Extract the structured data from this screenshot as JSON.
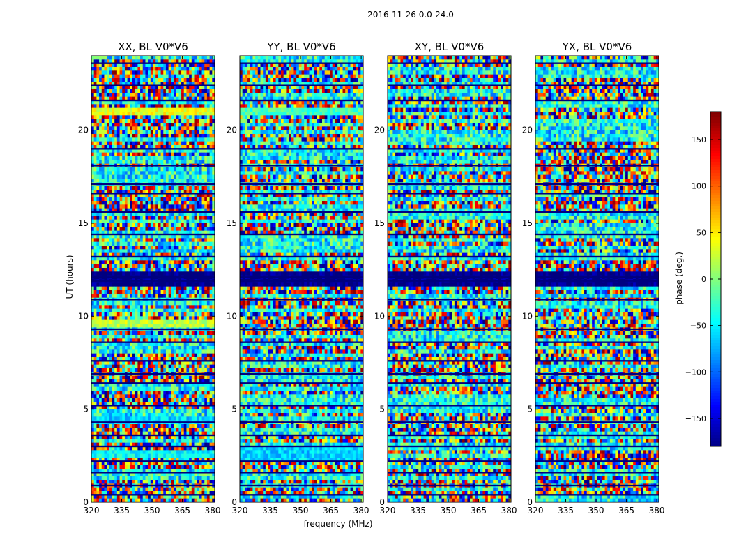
{
  "figure_title": "2016-11-26 0.0-24.0",
  "xlabel": "frequency (MHz)",
  "ylabel": "UT (hours)",
  "colorbar": {
    "label": "phase (deg.)",
    "range": [
      -180,
      180
    ],
    "ticks": [
      150,
      100,
      50,
      0,
      -50,
      -100,
      -150
    ],
    "tick_labels": [
      "150",
      "100",
      "50",
      "0",
      "−50",
      "−100",
      "−150"
    ],
    "colormap": "jet"
  },
  "chart_data": {
    "type": "heatmap",
    "title": "2016-11-26 0.0-24.0",
    "xlabel": "frequency (MHz)",
    "ylabel": "UT (hours)",
    "xlim": [
      320,
      381
    ],
    "ylim": [
      0,
      24
    ],
    "xticks": [
      320,
      335,
      350,
      365,
      380
    ],
    "yticks": [
      0,
      5,
      10,
      15,
      20
    ],
    "zlabel": "phase (deg.)",
    "zlim": [
      -180,
      180
    ],
    "panels": [
      {
        "title": "XX, BL V0*V6",
        "pol": "XX",
        "baseline": "V0*V6"
      },
      {
        "title": "YY, BL V0*V6",
        "pol": "YY",
        "baseline": "V0*V6"
      },
      {
        "title": "XY, BL V0*V6",
        "pol": "XY",
        "baseline": "V0*V6"
      },
      {
        "title": "YX, BL V0*V6",
        "pol": "YX",
        "baseline": "V0*V6"
      }
    ],
    "flagged_rows_ut": [
      0.0,
      0.4,
      0.9,
      1.6,
      2.2,
      3.0,
      3.6,
      4.3,
      5.2,
      6.4,
      6.9,
      7.6,
      8.6,
      9.3,
      10.9,
      11.9,
      12.1,
      13.2,
      14.4,
      15.6,
      16.6,
      17.1,
      18.1,
      19.0,
      21.6,
      22.4,
      23.6
    ],
    "dominant_phase_rows": [
      {
        "panel": "XX",
        "ut_range": [
          20.9,
          21.2
        ],
        "phase": 40
      },
      {
        "panel": "YY",
        "ut_range": [
          20.9,
          21.2
        ],
        "phase": -20
      },
      {
        "panel": "XX",
        "ut_range": [
          2.4,
          2.8
        ],
        "phase": -45
      },
      {
        "panel": "YY",
        "ut_range": [
          2.3,
          2.9
        ],
        "phase": -60
      },
      {
        "panel": "all",
        "ut_range": [
          11.7,
          12.4
        ],
        "phase": -180
      },
      {
        "panel": "XX",
        "ut_range": [
          9.5,
          9.8
        ],
        "phase": 20
      },
      {
        "panel": "XX",
        "ut_range": [
          4.3,
          4.6
        ],
        "phase": -60
      }
    ]
  }
}
